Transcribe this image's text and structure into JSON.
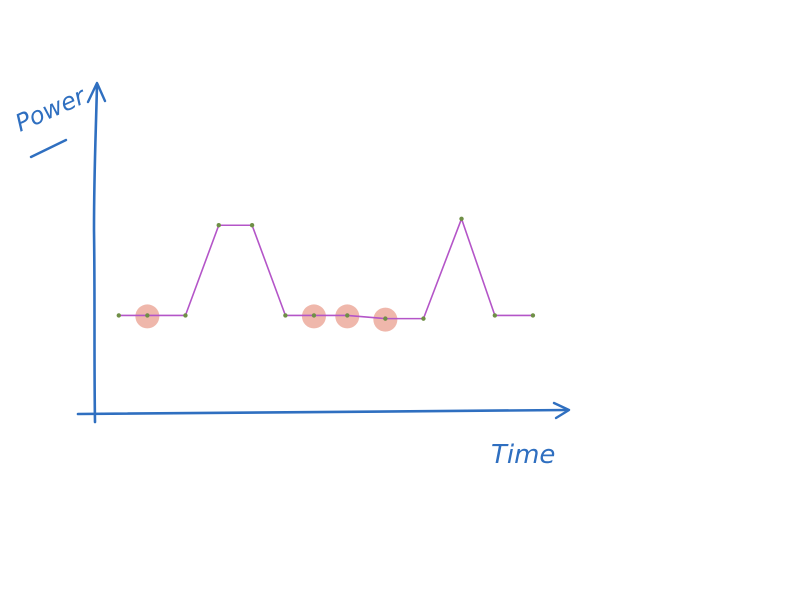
{
  "chart_data": {
    "type": "line",
    "title": "",
    "xlabel": "Time",
    "ylabel": "Power",
    "grid": false,
    "legend": "none",
    "xlim": [
      0,
      100
    ],
    "ylim": [
      0,
      100
    ],
    "points": [
      {
        "x": 5,
        "y": 30
      },
      {
        "x": 11,
        "y": 30
      },
      {
        "x": 19,
        "y": 30
      },
      {
        "x": 26,
        "y": 58
      },
      {
        "x": 33,
        "y": 58
      },
      {
        "x": 40,
        "y": 30
      },
      {
        "x": 46,
        "y": 30
      },
      {
        "x": 53,
        "y": 30
      },
      {
        "x": 61,
        "y": 29
      },
      {
        "x": 69,
        "y": 29
      },
      {
        "x": 77,
        "y": 60
      },
      {
        "x": 84,
        "y": 30
      },
      {
        "x": 92,
        "y": 30
      }
    ],
    "highlighted_points": [
      1,
      6,
      7,
      8
    ],
    "colors": {
      "axes": "#2f6fc0",
      "line": "#b455c8",
      "point": "#6f8f46",
      "highlight": "#e58a78"
    }
  }
}
